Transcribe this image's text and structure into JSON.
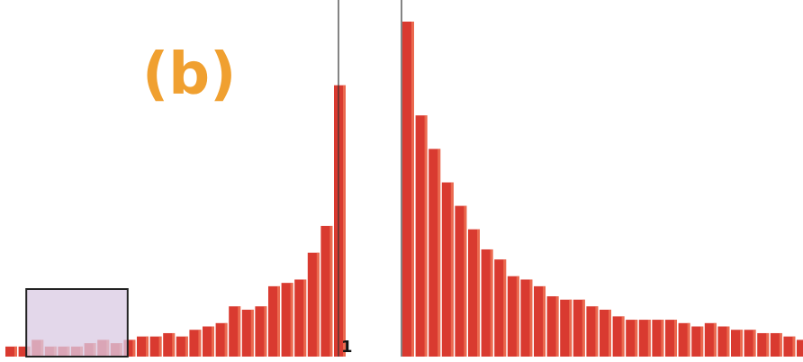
{
  "chart_data": {
    "type": "bar",
    "panel_label": "(b)",
    "center_tick_label": "1",
    "title": "",
    "xlabel": "",
    "ylabel": "",
    "ylim": [
      0,
      100
    ],
    "grid": false,
    "legend": "none",
    "left_values": [
      3,
      3,
      5,
      3,
      3,
      3,
      4,
      5,
      4,
      5,
      6,
      6,
      7,
      6,
      8,
      9,
      10,
      15,
      14,
      15,
      21,
      22,
      23,
      31,
      39,
      81
    ],
    "right_values": [
      100,
      72,
      62,
      52,
      45,
      38,
      32,
      29,
      24,
      23,
      21,
      18,
      17,
      17,
      15,
      14,
      12,
      11,
      11,
      11,
      11,
      10,
      9,
      10,
      9,
      8,
      8,
      7,
      7,
      6,
      5,
      5,
      5
    ],
    "highlight_box_bars": [
      2,
      8
    ],
    "colors": {
      "bar": "#d93a30",
      "bar_shade": "#f07a5a",
      "panel_label": "#f0a030",
      "highlight_fill": "#d9c9e3",
      "highlight_stroke": "#222222",
      "divider": "#333333",
      "tick_label": "#111111"
    }
  }
}
